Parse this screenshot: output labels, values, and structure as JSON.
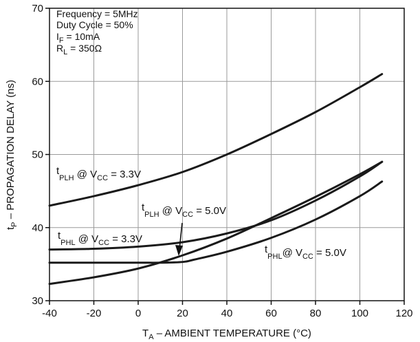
{
  "chart_data": {
    "type": "line",
    "title": "",
    "xlabel": "T",
    "xlabel_sub": "A",
    "xlabel_rest": " – AMBIENT TEMPERATURE (°C)",
    "ylabel": "t",
    "ylabel_sub": "P",
    "ylabel_rest": " – PROPAGATION DELAY (ns)",
    "xlim": [
      -40,
      120
    ],
    "ylim": [
      30,
      70
    ],
    "xticks": [
      -40,
      -20,
      0,
      20,
      40,
      60,
      80,
      100,
      120
    ],
    "yticks": [
      30,
      40,
      50,
      60,
      70
    ],
    "grid": true,
    "conditions": [
      {
        "text": "Frequency = 5MHz"
      },
      {
        "text": "Duty Cycle = 50%"
      },
      {
        "main": "I",
        "sub": "F",
        "rest": " = 10mA"
      },
      {
        "main": "R",
        "sub": "L",
        "rest": " = 350Ω"
      }
    ],
    "series": [
      {
        "label": {
          "a": "t",
          "asub": "PLH",
          "b": " @ V",
          "bsub": "CC",
          "c": " = 3.3V"
        },
        "x": [
          -40,
          -20,
          0,
          20,
          40,
          60,
          80,
          100,
          110
        ],
        "y": [
          43.0,
          44.3,
          45.8,
          47.6,
          50.0,
          52.8,
          55.8,
          59.2,
          61.0
        ]
      },
      {
        "label": {
          "a": "t",
          "asub": "PLH",
          "b": " @ V",
          "bsub": "CC",
          "c": " = 5.0V"
        },
        "x": [
          -40,
          -20,
          0,
          20,
          40,
          60,
          80,
          100,
          110
        ],
        "y": [
          32.3,
          33.2,
          34.4,
          36.2,
          38.5,
          41.3,
          44.2,
          47.3,
          49.0
        ]
      },
      {
        "label": {
          "a": "t",
          "asub": "PHL",
          "b": " @ V",
          "bsub": "CC",
          "c": " = 3.3V"
        },
        "x": [
          -40,
          -20,
          0,
          20,
          40,
          60,
          80,
          100,
          110
        ],
        "y": [
          37.0,
          37.1,
          37.4,
          38.0,
          39.2,
          41.0,
          43.7,
          47.0,
          49.0
        ]
      },
      {
        "label": {
          "a": "t",
          "asub": "PHL",
          "b": "@ V",
          "bsub": "CC",
          "c": " = 5.0V"
        },
        "x": [
          -40,
          -20,
          0,
          10,
          20,
          25,
          40,
          60,
          80,
          100,
          110
        ],
        "y": [
          35.2,
          35.2,
          35.2,
          35.2,
          35.3,
          35.6,
          36.7,
          38.6,
          41.1,
          44.3,
          46.3
        ]
      }
    ]
  }
}
